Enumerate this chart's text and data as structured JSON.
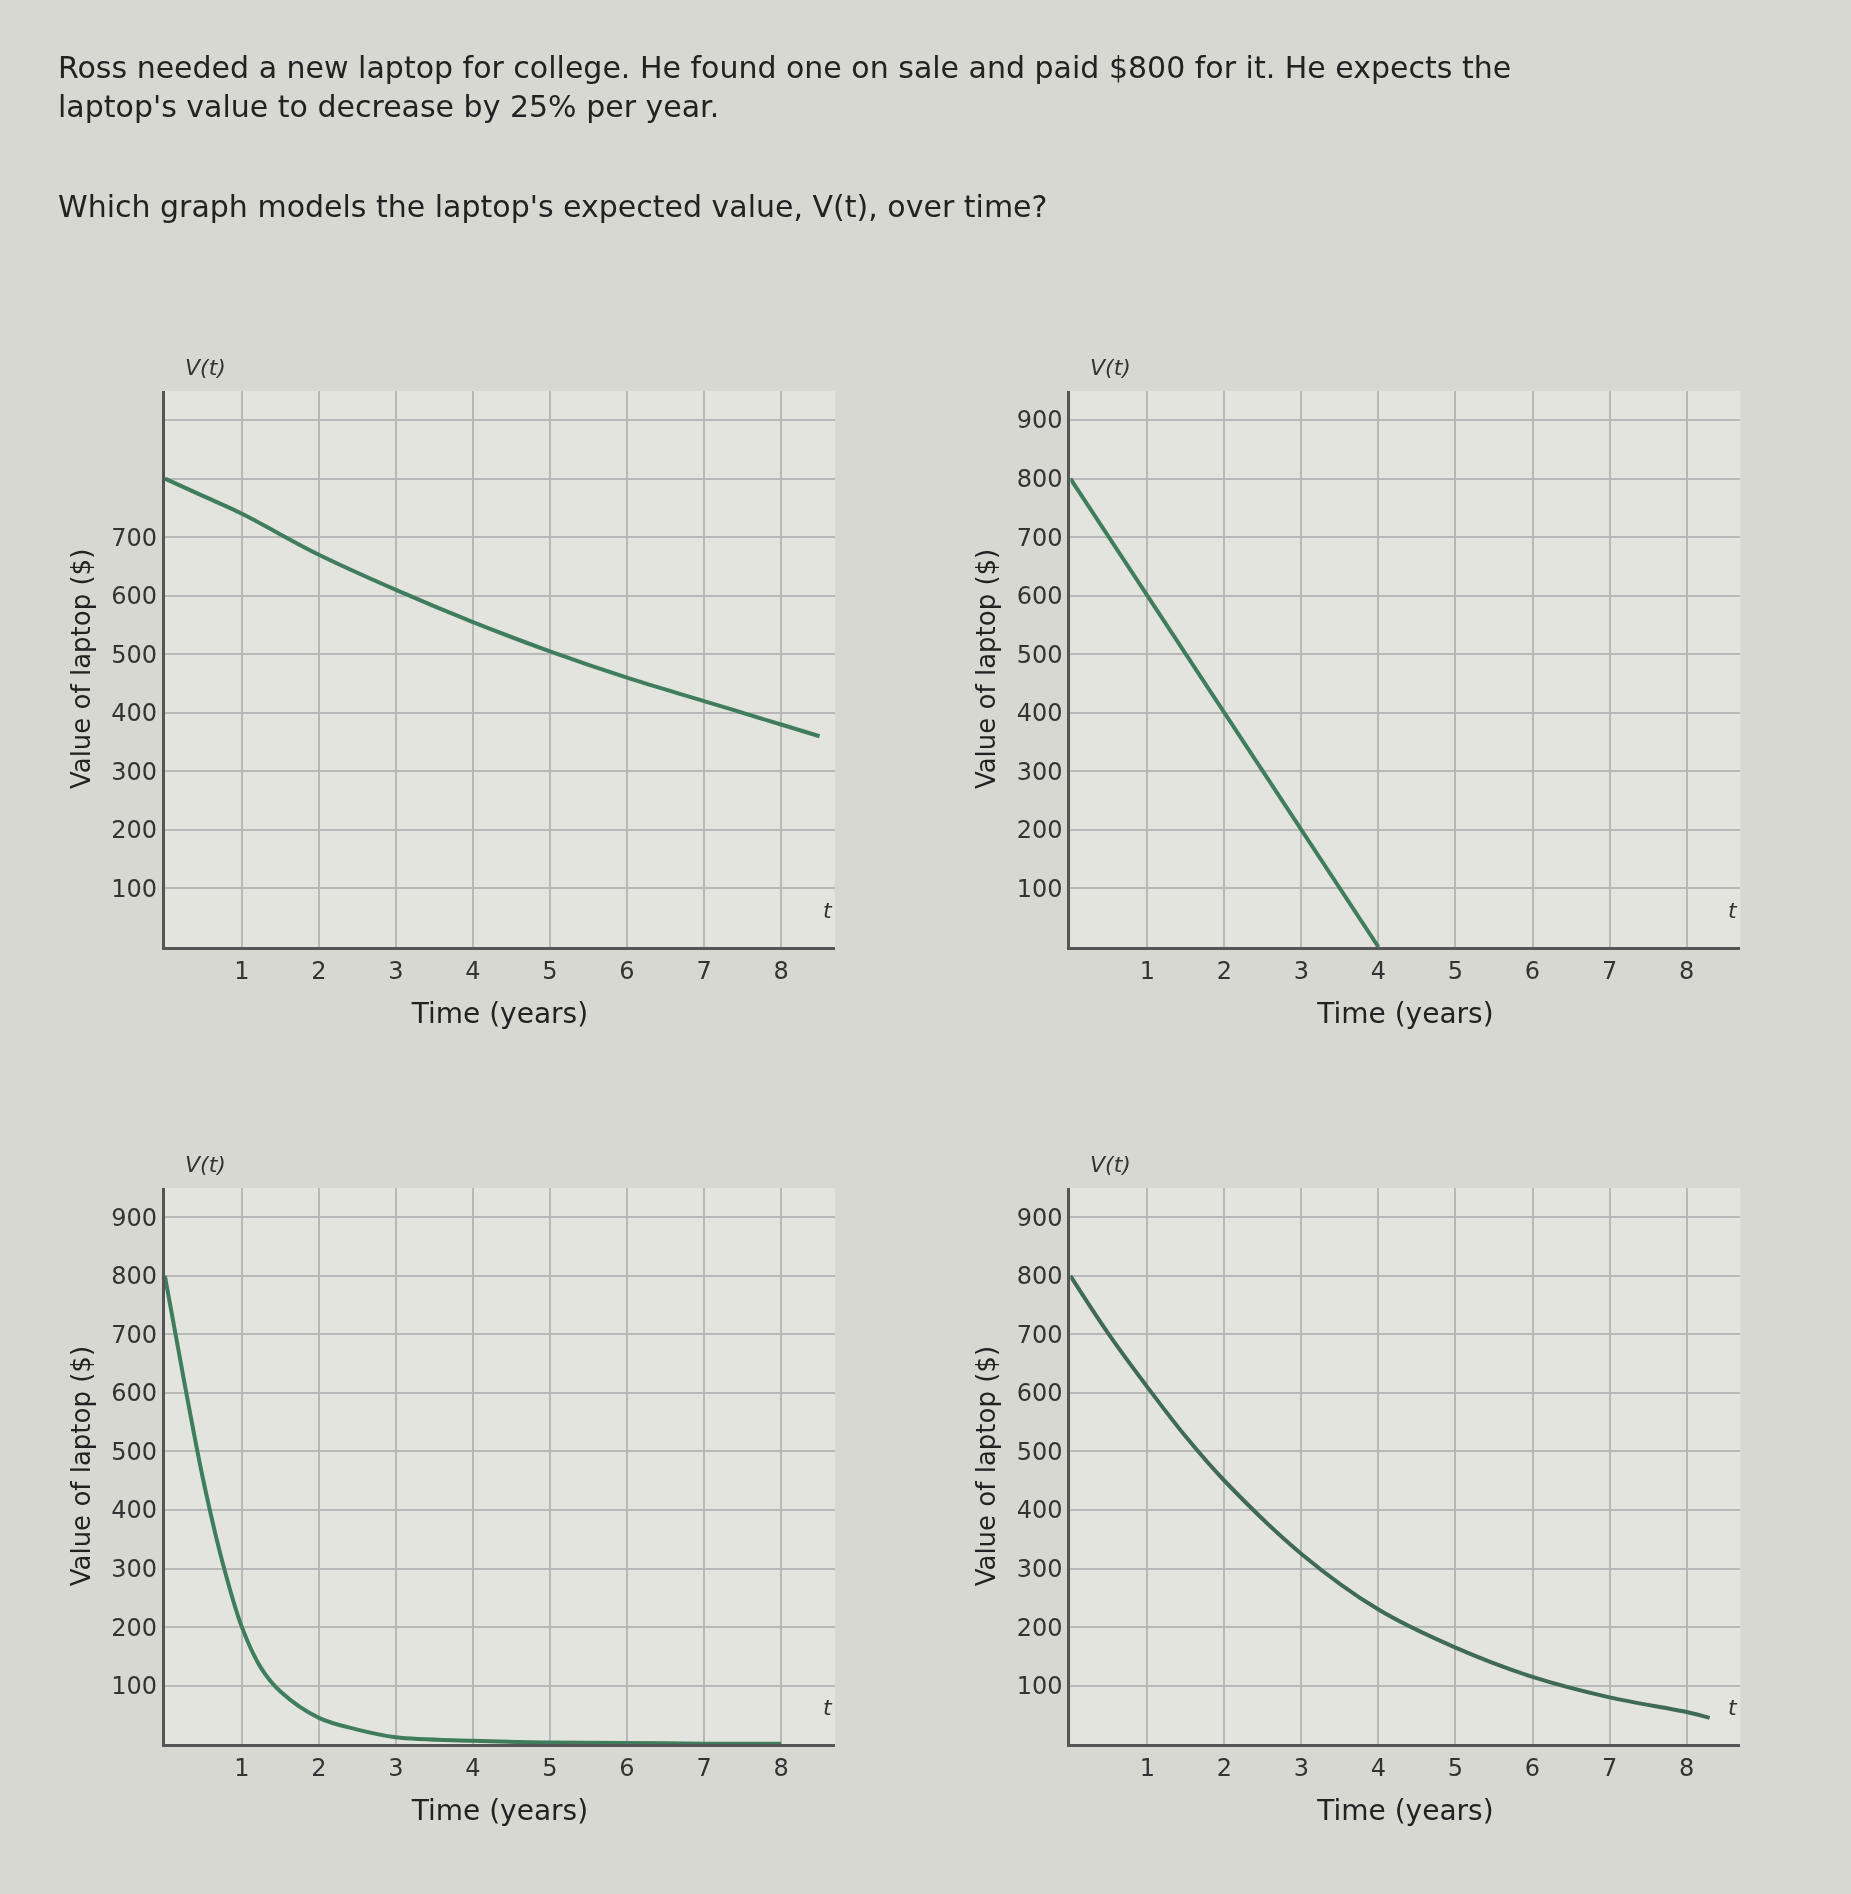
{
  "chart_data": [
    {
      "type": "line",
      "title": "Ross needed a new laptop for college. He found one on sale and paid $800 for it. He expects the laptop's value to decrease by 25% per year.",
      "subtitle": "Which graph models the laptop's expected value, V(t), over time?",
      "xlabel": "Time (years)",
      "ylabel": "Value of laptop ($)",
      "annotations": [
        "V(t)",
        "t"
      ],
      "x": [
        0,
        0.5,
        1,
        2,
        3,
        4,
        5,
        6,
        7,
        8,
        8.5
      ],
      "series": [
        {
          "color": "#3f7d5c",
          "values": [
            800,
            770,
            740,
            670,
            610,
            555,
            505,
            460,
            420,
            380,
            360
          ]
        }
      ],
      "xlim": [
        0,
        8.7
      ],
      "ylim": [
        0,
        950
      ],
      "xticks": [
        1,
        2,
        3,
        4,
        5,
        6,
        7,
        8
      ],
      "yticks": [
        100,
        200,
        300,
        400,
        500,
        600,
        700,
        {
          "value": 800,
          "label": null
        },
        {
          "value": 900,
          "label": null
        }
      ],
      "grid": true,
      "marker": "none",
      "line_style": "solid"
    },
    {
      "type": "line",
      "xlabel": "Time (years)",
      "ylabel": "Value of laptop ($)",
      "annotations": [
        "V(t)",
        "t"
      ],
      "x": [
        0,
        4
      ],
      "series": [
        {
          "color": "#3f7d5c",
          "values": [
            800,
            0
          ]
        }
      ],
      "xlim": [
        0,
        8.7
      ],
      "ylim": [
        0,
        950
      ],
      "xticks": [
        1,
        2,
        3,
        4,
        5,
        6,
        7,
        8
      ],
      "yticks": [
        100,
        200,
        300,
        400,
        500,
        600,
        700,
        800,
        900
      ],
      "grid": true,
      "marker": "none",
      "line_style": "solid"
    },
    {
      "type": "line",
      "xlabel": "Time (years)",
      "ylabel": "Value of laptop ($)",
      "annotations": [
        "V(t)",
        "t"
      ],
      "x": [
        0,
        0.25,
        0.5,
        0.75,
        1,
        1.25,
        1.5,
        2,
        2.5,
        3,
        4,
        5,
        6,
        7,
        8
      ],
      "series": [
        {
          "color": "#3f7d5c",
          "values": [
            800,
            620,
            450,
            310,
            200,
            130,
            90,
            45,
            25,
            12,
            6,
            3,
            2,
            1,
            1
          ]
        }
      ],
      "xlim": [
        0,
        8.7
      ],
      "ylim": [
        0,
        950
      ],
      "xticks": [
        1,
        2,
        3,
        4,
        5,
        6,
        7,
        8
      ],
      "yticks": [
        100,
        200,
        300,
        400,
        500,
        600,
        700,
        800,
        900
      ],
      "grid": true,
      "marker": "none",
      "line_style": "solid"
    },
    {
      "type": "line",
      "xlabel": "Time (years)",
      "ylabel": "Value of laptop ($)",
      "annotations": [
        "V(t)",
        "t"
      ],
      "x": [
        0,
        0.5,
        1,
        1.5,
        2,
        3,
        4,
        5,
        6,
        7,
        8,
        8.3
      ],
      "series": [
        {
          "color": "#3f6a55",
          "values": [
            800,
            700,
            610,
            525,
            450,
            325,
            230,
            165,
            115,
            80,
            55,
            45
          ]
        }
      ],
      "xlim": [
        0,
        8.7
      ],
      "ylim": [
        0,
        950
      ],
      "xticks": [
        1,
        2,
        3,
        4,
        5,
        6,
        7,
        8
      ],
      "yticks": [
        100,
        200,
        300,
        400,
        500,
        600,
        700,
        800,
        900
      ],
      "grid": true,
      "marker": "none",
      "line_style": "solid"
    }
  ]
}
